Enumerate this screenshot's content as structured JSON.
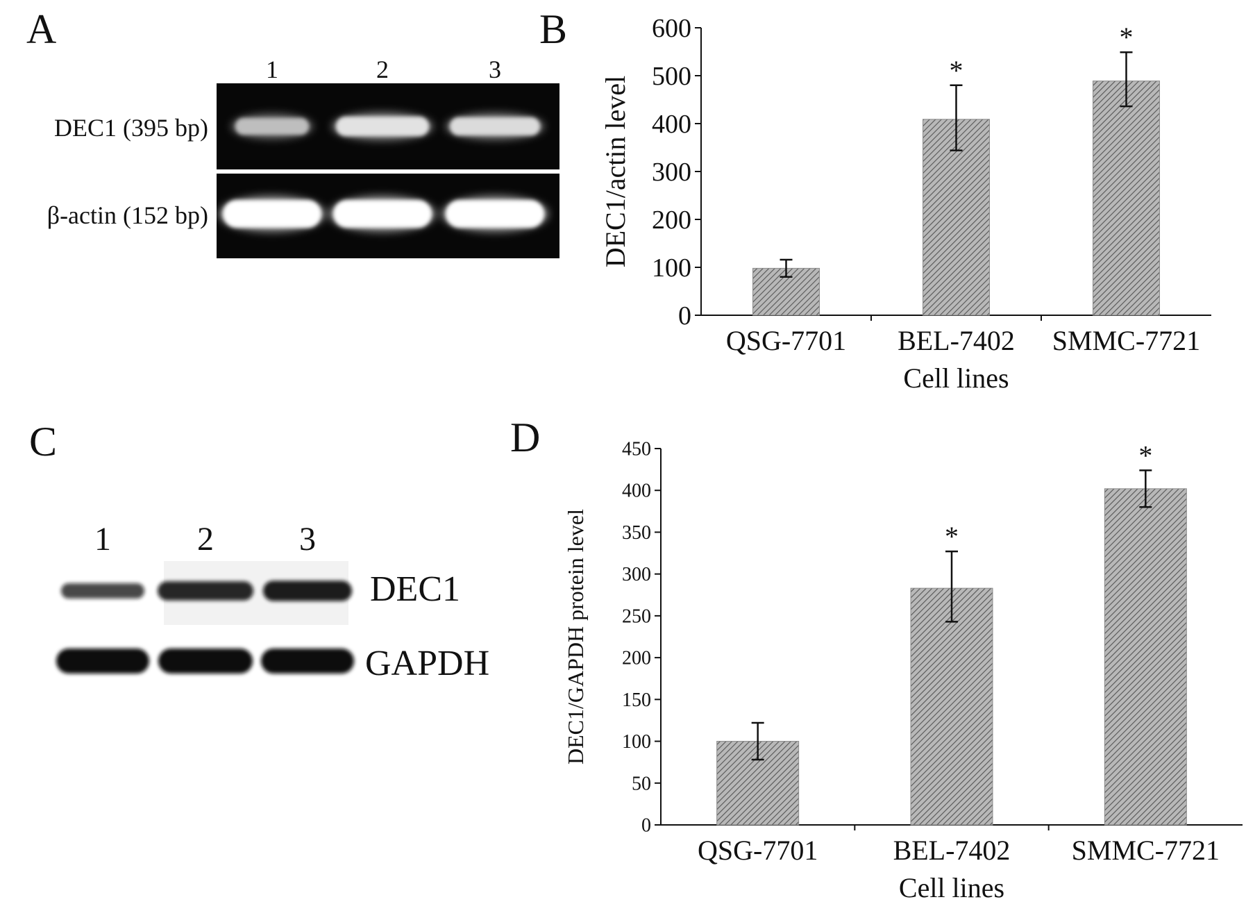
{
  "panels": {
    "A": {
      "letter": "A",
      "lanes": [
        "1",
        "2",
        "3"
      ],
      "rows": [
        {
          "label": "DEC1 (395 bp)",
          "band_intensity": [
            0.55,
            0.8,
            0.75
          ]
        },
        {
          "label": "β-actin (152 bp)",
          "band_intensity": [
            1.0,
            1.0,
            1.0
          ]
        }
      ]
    },
    "B": {
      "letter": "B"
    },
    "C": {
      "letter": "C",
      "lanes": [
        "1",
        "2",
        "3"
      ],
      "rows": [
        {
          "label": "DEC1",
          "band_intensity": [
            0.45,
            0.75,
            0.85
          ]
        },
        {
          "label": "GAPDH",
          "band_intensity": [
            1.0,
            1.0,
            1.0
          ]
        }
      ]
    },
    "D": {
      "letter": "D"
    }
  },
  "chart_data": [
    {
      "panel": "B",
      "type": "bar",
      "categories": [
        "QSG-7701",
        "BEL-7402",
        "SMMC-7721"
      ],
      "values": [
        98,
        409,
        489
      ],
      "error": [
        [
          80,
          116
        ],
        [
          344,
          480
        ],
        [
          436,
          549
        ]
      ],
      "significance": [
        "",
        "*",
        "*"
      ],
      "xlabel": "Cell lines",
      "ylabel": "DEC1/actin level",
      "ylim": [
        0,
        600
      ],
      "yticks": [
        0,
        100,
        200,
        300,
        400,
        500,
        600
      ],
      "bar_fill": "hatched",
      "colors": {
        "bar": "#9a9a9a",
        "hatch": "#555555",
        "axis": "#111111"
      }
    },
    {
      "panel": "D",
      "type": "bar",
      "categories": [
        "QSG-7701",
        "BEL-7402",
        "SMMC-7721"
      ],
      "values": [
        100,
        283,
        402
      ],
      "error": [
        [
          78,
          122
        ],
        [
          243,
          327
        ],
        [
          380,
          424
        ]
      ],
      "significance": [
        "",
        "*",
        "*"
      ],
      "xlabel": "Cell lines",
      "ylabel": "DEC1/GAPDH protein level",
      "ylim": [
        0,
        450
      ],
      "yticks": [
        0,
        50,
        100,
        150,
        200,
        250,
        300,
        350,
        400,
        450
      ],
      "bar_fill": "hatched",
      "colors": {
        "bar": "#9a9a9a",
        "hatch": "#555555",
        "axis": "#111111"
      }
    }
  ]
}
